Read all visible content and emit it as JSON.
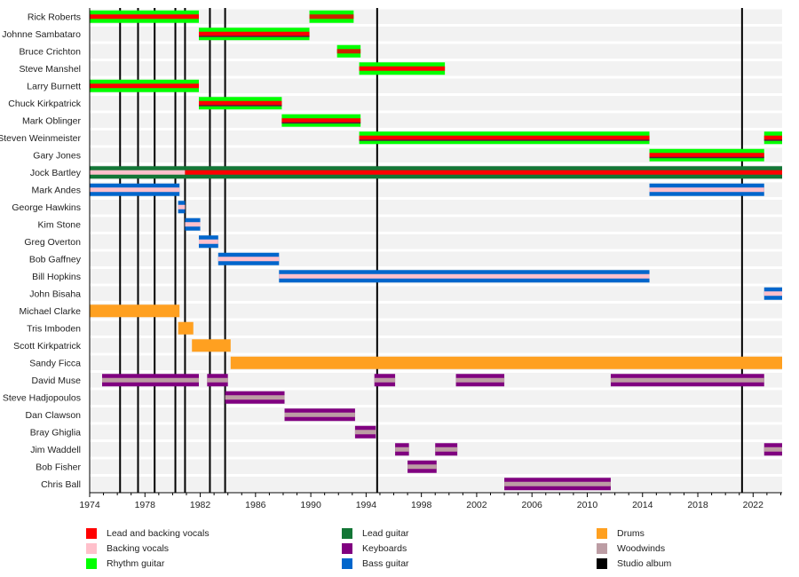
{
  "chart_data": {
    "type": "timeline",
    "title": "",
    "x_range": [
      1974,
      2024.1
    ],
    "x_ticks": [
      1974,
      1978,
      1982,
      1986,
      1990,
      1994,
      1998,
      2002,
      2006,
      2010,
      2014,
      2018,
      2022
    ],
    "x_minor_step": 1,
    "colors": {
      "lead_vocals": "#ff0000",
      "backing_vocals": "#ffc0cb",
      "rhythm_guitar": "#00ff00",
      "lead_guitar": "#137636",
      "keyboards": "#800080",
      "bass": "#0066cc",
      "drums": "#ffa020",
      "woodwinds": "#bc9da4",
      "studio_album": "#000000",
      "row_band": "#f2f2f2",
      "dark_inner": "#5a1a3a"
    },
    "members": [
      {
        "name": "Rick Roberts",
        "bars": [
          {
            "start": 1974.0,
            "end": 1981.9,
            "outer": "rhythm_guitar",
            "inner": "lead_vocals"
          },
          {
            "start": 1989.9,
            "end": 1993.1,
            "outer": "rhythm_guitar",
            "inner": "lead_vocals_dark"
          }
        ]
      },
      {
        "name": "Johnne Sambataro",
        "bars": [
          {
            "start": 1981.9,
            "end": 1989.9,
            "outer": "rhythm_guitar",
            "inner": "lead_vocals",
            "stripe": "keyboards"
          }
        ]
      },
      {
        "name": "Bruce Crichton",
        "bars": [
          {
            "start": 1991.9,
            "end": 1993.6,
            "outer": "rhythm_guitar",
            "inner": "lead_vocals_dark"
          }
        ]
      },
      {
        "name": "Steve Manshel",
        "bars": [
          {
            "start": 1993.5,
            "end": 1999.7,
            "outer": "rhythm_guitar",
            "inner": "lead_vocals"
          }
        ]
      },
      {
        "name": "Larry Burnett",
        "bars": [
          {
            "start": 1974.0,
            "end": 1981.9,
            "outer": "rhythm_guitar",
            "inner": "lead_vocals"
          }
        ]
      },
      {
        "name": "Chuck Kirkpatrick",
        "bars": [
          {
            "start": 1981.9,
            "end": 1987.9,
            "outer": "rhythm_guitar",
            "inner": "lead_vocals",
            "stripe": "keyboards"
          }
        ]
      },
      {
        "name": "Mark Oblinger",
        "bars": [
          {
            "start": 1987.9,
            "end": 1993.6,
            "outer": "rhythm_guitar",
            "inner": "lead_vocals",
            "stripe": "keyboards"
          }
        ]
      },
      {
        "name": "Steven Weinmeister",
        "bars": [
          {
            "start": 1993.5,
            "end": 2014.5,
            "outer": "rhythm_guitar",
            "inner": "lead_vocals",
            "stripe": "keyboards"
          },
          {
            "start": 2022.8,
            "end": 2024.1,
            "outer": "rhythm_guitar",
            "inner": "lead_vocals",
            "stripe": "keyboards"
          }
        ]
      },
      {
        "name": "Gary Jones",
        "bars": [
          {
            "start": 2014.5,
            "end": 2022.8,
            "outer": "rhythm_guitar",
            "inner": "lead_vocals",
            "stripe": "keyboards"
          }
        ]
      },
      {
        "name": "Jock Bartley",
        "bars": [
          {
            "start": 1974.0,
            "end": 1980.9,
            "outer": "lead_guitar",
            "inner": "backing_vocals"
          },
          {
            "start": 1980.9,
            "end": 2024.1,
            "outer": "lead_guitar",
            "inner": "lead_vocals"
          }
        ]
      },
      {
        "name": "Mark Andes",
        "bars": [
          {
            "start": 1974.0,
            "end": 1980.5,
            "outer": "bass",
            "inner": "backing_vocals"
          },
          {
            "start": 2014.5,
            "end": 2022.8,
            "outer": "bass",
            "inner": "backing_vocals"
          }
        ]
      },
      {
        "name": "George Hawkins",
        "bars": [
          {
            "start": 1980.4,
            "end": 1980.9,
            "outer": "bass",
            "inner": "backing_vocals"
          }
        ]
      },
      {
        "name": "Kim Stone",
        "bars": [
          {
            "start": 1980.9,
            "end": 1982.0,
            "outer": "bass",
            "inner": "backing_vocals"
          }
        ]
      },
      {
        "name": "Greg Overton",
        "bars": [
          {
            "start": 1981.9,
            "end": 1983.3,
            "outer": "bass",
            "inner": "backing_vocals"
          }
        ]
      },
      {
        "name": "Bob Gaffney",
        "bars": [
          {
            "start": 1983.3,
            "end": 1987.7,
            "outer": "bass",
            "inner": "backing_vocals"
          }
        ]
      },
      {
        "name": "Bill Hopkins",
        "bars": [
          {
            "start": 1987.7,
            "end": 2014.5,
            "outer": "bass",
            "inner": "backing_vocals"
          }
        ]
      },
      {
        "name": "John Bisaha",
        "bars": [
          {
            "start": 2022.8,
            "end": 2024.1,
            "outer": "bass",
            "inner": "backing_vocals"
          }
        ]
      },
      {
        "name": "Michael Clarke",
        "bars": [
          {
            "start": 1974.0,
            "end": 1980.5,
            "outer": "drums"
          }
        ]
      },
      {
        "name": "Tris Imboden",
        "bars": [
          {
            "start": 1980.4,
            "end": 1981.5,
            "outer": "drums"
          }
        ]
      },
      {
        "name": "Scott Kirkpatrick",
        "bars": [
          {
            "start": 1981.4,
            "end": 1984.2,
            "outer": "drums"
          }
        ]
      },
      {
        "name": "Sandy Ficca",
        "bars": [
          {
            "start": 1984.2,
            "end": 2024.1,
            "outer": "drums"
          }
        ]
      },
      {
        "name": "David Muse",
        "bars": [
          {
            "start": 1974.9,
            "end": 1981.9,
            "outer": "keyboards",
            "inner": "woodwinds"
          },
          {
            "start": 1982.5,
            "end": 1984.0,
            "outer": "keyboards",
            "inner": "woodwinds"
          },
          {
            "start": 1994.6,
            "end": 1996.1,
            "outer": "keyboards",
            "inner": "woodwinds"
          },
          {
            "start": 2000.5,
            "end": 2004.0,
            "outer": "keyboards",
            "inner": "woodwinds"
          },
          {
            "start": 2011.7,
            "end": 2022.8,
            "outer": "keyboards",
            "inner": "woodwinds"
          }
        ]
      },
      {
        "name": "Steve Hadjopoulos",
        "bars": [
          {
            "start": 1983.8,
            "end": 1988.1,
            "outer": "keyboards",
            "inner": "woodwinds"
          }
        ]
      },
      {
        "name": "Dan Clawson",
        "bars": [
          {
            "start": 1988.1,
            "end": 1993.2,
            "outer": "keyboards",
            "inner": "woodwinds"
          }
        ]
      },
      {
        "name": "Bray Ghiglia",
        "bars": [
          {
            "start": 1993.2,
            "end": 1994.7,
            "outer": "keyboards",
            "inner": "woodwinds"
          }
        ]
      },
      {
        "name": "Jim Waddell",
        "bars": [
          {
            "start": 1996.1,
            "end": 1997.1,
            "outer": "keyboards",
            "inner": "woodwinds"
          },
          {
            "start": 1999.0,
            "end": 2000.6,
            "outer": "keyboards",
            "inner": "woodwinds"
          },
          {
            "start": 2022.8,
            "end": 2024.1,
            "outer": "keyboards",
            "inner": "woodwinds"
          }
        ]
      },
      {
        "name": "Bob Fisher",
        "bars": [
          {
            "start": 1997.0,
            "end": 1999.1,
            "outer": "keyboards",
            "inner": "woodwinds"
          }
        ]
      },
      {
        "name": "Chris Ball",
        "bars": [
          {
            "start": 2004.0,
            "end": 2011.7,
            "outer": "keyboards",
            "inner": "woodwinds"
          }
        ]
      }
    ],
    "studio_albums": [
      1976.2,
      1977.5,
      1978.7,
      1980.2,
      1980.9,
      1982.7,
      1983.8,
      1994.8,
      2021.2
    ],
    "legend": [
      {
        "label": "Lead and backing vocals",
        "color": "#ff0000"
      },
      {
        "label": "Backing vocals",
        "color": "#ffc0cb"
      },
      {
        "label": "Rhythm guitar",
        "color": "#00ff00"
      },
      {
        "label": "Lead guitar",
        "color": "#137636"
      },
      {
        "label": "Keyboards",
        "color": "#800080"
      },
      {
        "label": "Bass guitar",
        "color": "#0066cc"
      },
      {
        "label": "Drums",
        "color": "#ffa020"
      },
      {
        "label": "Woodwinds",
        "color": "#bc9da4"
      },
      {
        "label": "Studio album",
        "color": "#000000"
      }
    ],
    "legend_position": "bottom"
  }
}
